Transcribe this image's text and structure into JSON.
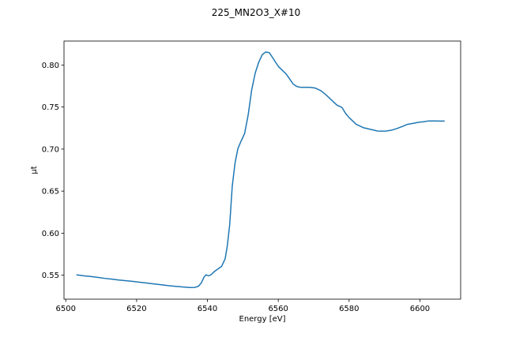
{
  "chart_data": {
    "type": "line",
    "title": "225_MN2O3_X#10",
    "xlabel": "Energy [eV]",
    "ylabel": "μt",
    "xlim": [
      6499.5,
      6611.5
    ],
    "ylim": [
      0.5215,
      0.8285
    ],
    "x_ticks": [
      6500,
      6520,
      6540,
      6560,
      6580,
      6600
    ],
    "y_ticks": [
      0.55,
      0.6,
      0.65,
      0.7,
      0.75,
      0.8
    ],
    "y_tick_labels": [
      "0.55",
      "0.60",
      "0.65",
      "0.70",
      "0.75",
      "0.80"
    ],
    "grid": false,
    "legend": "none",
    "series": [
      {
        "color": "#1f77b4",
        "x": [
          6503,
          6505,
          6507,
          6509,
          6511,
          6513,
          6515,
          6517,
          6519,
          6521,
          6523,
          6525,
          6527,
          6529,
          6531,
          6533,
          6535,
          6536.5,
          6537.5,
          6538.3,
          6539,
          6539.6,
          6540.3,
          6541,
          6542,
          6543,
          6544,
          6545,
          6545.6,
          6546.3,
          6547,
          6547.8,
          6548.6,
          6549.5,
          6550.5,
          6551.5,
          6552.5,
          6553.5,
          6554.5,
          6555.5,
          6556.5,
          6557.5,
          6558.3,
          6559.2,
          6560.2,
          6561.2,
          6562.2,
          6563.2,
          6564.2,
          6565.2,
          6566.2,
          6567.5,
          6569,
          6570.5,
          6572,
          6573.5,
          6575,
          6576.5,
          6578,
          6579,
          6580,
          6581,
          6582,
          6583,
          6584,
          6585,
          6586,
          6587,
          6588,
          6589,
          6590.5,
          6592,
          6593.5,
          6595,
          6596.5,
          6598,
          6599.5,
          6601,
          6602.5,
          6604,
          6605.5,
          6607
        ],
        "y": [
          0.5505,
          0.5493,
          0.5485,
          0.5474,
          0.5462,
          0.5453,
          0.5443,
          0.5434,
          0.5426,
          0.5416,
          0.5406,
          0.5396,
          0.5386,
          0.5376,
          0.5368,
          0.5361,
          0.5353,
          0.5355,
          0.537,
          0.541,
          0.5475,
          0.5505,
          0.5492,
          0.5505,
          0.5545,
          0.5575,
          0.5605,
          0.5695,
          0.5845,
          0.6105,
          0.6555,
          0.6835,
          0.7005,
          0.7095,
          0.7185,
          0.7405,
          0.7705,
          0.7905,
          0.8035,
          0.8125,
          0.8155,
          0.8145,
          0.8095,
          0.8035,
          0.7975,
          0.7935,
          0.7895,
          0.7835,
          0.7775,
          0.7745,
          0.7735,
          0.7735,
          0.7735,
          0.7725,
          0.7695,
          0.7645,
          0.7585,
          0.7525,
          0.7495,
          0.7425,
          0.7375,
          0.7335,
          0.7295,
          0.7275,
          0.7255,
          0.7245,
          0.7235,
          0.7225,
          0.7215,
          0.7213,
          0.7215,
          0.7225,
          0.7245,
          0.7268,
          0.7295,
          0.7305,
          0.7318,
          0.7325,
          0.7335,
          0.7335,
          0.7333,
          0.7333
        ]
      }
    ]
  }
}
